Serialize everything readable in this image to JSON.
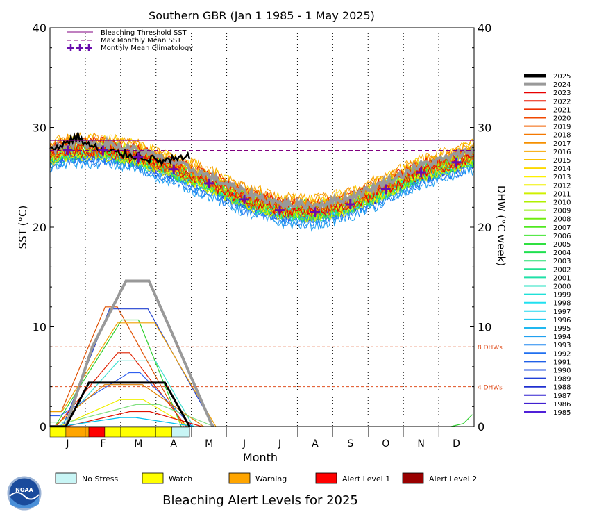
{
  "chart_data": {
    "type": "line",
    "title": "Southern GBR      (Jan 1 1985 - 1 May 2025)",
    "xlabel": "Month",
    "ylabel_left": "SST (°C)",
    "ylabel_right": "DHW (°C week)",
    "ylim": [
      0,
      40
    ],
    "yticks": [
      0,
      10,
      20,
      30,
      40
    ],
    "xticks": [
      "J",
      "F",
      "M",
      "A",
      "M",
      "J",
      "J",
      "A",
      "S",
      "O",
      "N",
      "D"
    ],
    "grid": "vertical dotted lines at month boundaries",
    "bleaching_threshold_sst": 28.7,
    "max_monthly_mean_sst": 27.7,
    "dhw_thresholds": [
      {
        "value": 4,
        "label": "4 DHWs"
      },
      {
        "value": 8,
        "label": "8 DHWs"
      }
    ],
    "legend_top": [
      {
        "label": "Bleaching Threshold SST",
        "style": "solid",
        "color": "#800080"
      },
      {
        "label": "Max Monthly Mean SST",
        "style": "dashed",
        "color": "#800080"
      },
      {
        "label": "Monthly Mean Climatology",
        "style": "plus",
        "color": "#6a0dad"
      }
    ],
    "climatology": [
      {
        "x": 0.5,
        "y": 27.7
      },
      {
        "x": 1.5,
        "y": 27.7
      },
      {
        "x": 2.5,
        "y": 27.0
      },
      {
        "x": 3.5,
        "y": 25.8
      },
      {
        "x": 4.5,
        "y": 24.4
      },
      {
        "x": 5.5,
        "y": 22.8
      },
      {
        "x": 6.5,
        "y": 21.7
      },
      {
        "x": 7.5,
        "y": 21.5
      },
      {
        "x": 8.5,
        "y": 22.3
      },
      {
        "x": 9.5,
        "y": 23.8
      },
      {
        "x": 10.5,
        "y": 25.5
      },
      {
        "x": 11.5,
        "y": 26.5
      }
    ],
    "sst_2025": [
      {
        "x": 0.0,
        "y": 27.7
      },
      {
        "x": 0.3,
        "y": 28.2
      },
      {
        "x": 0.5,
        "y": 28.6
      },
      {
        "x": 0.8,
        "y": 29.1
      },
      {
        "x": 1.0,
        "y": 28.4
      },
      {
        "x": 1.3,
        "y": 27.9
      },
      {
        "x": 1.6,
        "y": 27.6
      },
      {
        "x": 1.9,
        "y": 27.4
      },
      {
        "x": 2.2,
        "y": 27.3
      },
      {
        "x": 2.5,
        "y": 27.2
      },
      {
        "x": 2.8,
        "y": 26.9
      },
      {
        "x": 3.1,
        "y": 26.6
      },
      {
        "x": 3.4,
        "y": 26.7
      },
      {
        "x": 3.7,
        "y": 26.8
      },
      {
        "x": 3.95,
        "y": 27.0
      }
    ],
    "dhw_2025": [
      {
        "x": 0.0,
        "y": 0.0
      },
      {
        "x": 0.45,
        "y": 0.0
      },
      {
        "x": 1.1,
        "y": 4.4
      },
      {
        "x": 3.25,
        "y": 4.4
      },
      {
        "x": 3.95,
        "y": 0.0
      }
    ],
    "dhw_2024": [
      {
        "x": 0.0,
        "y": 0.0
      },
      {
        "x": 0.45,
        "y": 0.0
      },
      {
        "x": 1.2,
        "y": 8.0
      },
      {
        "x": 2.15,
        "y": 14.6
      },
      {
        "x": 2.8,
        "y": 14.6
      },
      {
        "x": 3.5,
        "y": 9.0
      },
      {
        "x": 4.6,
        "y": 0.0
      }
    ],
    "dhw_peaks_other_years": [
      {
        "peak": 12.0,
        "color": "#e05000"
      },
      {
        "peak": 11.8,
        "color": "#2040d0"
      },
      {
        "peak": 10.7,
        "color": "#30d030"
      },
      {
        "peak": 10.4,
        "color": "#f0a000"
      },
      {
        "peak": 7.4,
        "color": "#e02000"
      },
      {
        "peak": 6.6,
        "color": "#40e0d0"
      },
      {
        "peak": 5.4,
        "color": "#3060f0"
      },
      {
        "peak": 4.2,
        "color": "#e08000"
      },
      {
        "peak": 2.7,
        "color": "#f0f000"
      },
      {
        "peak": 2.2,
        "color": "#80e080"
      },
      {
        "peak": 1.5,
        "color": "#e01000"
      },
      {
        "peak": 0.9,
        "color": "#00c0f0"
      }
    ],
    "years_legend": [
      {
        "year": "2025",
        "color": "#000000",
        "width": 5
      },
      {
        "year": "2024",
        "color": "#999999",
        "width": 5
      },
      {
        "year": "2023",
        "color": "#e80000",
        "width": 2
      },
      {
        "year": "2022",
        "color": "#ec1800",
        "width": 2
      },
      {
        "year": "2021",
        "color": "#ee3000",
        "width": 2
      },
      {
        "year": "2020",
        "color": "#f04800",
        "width": 2
      },
      {
        "year": "2019",
        "color": "#f26000",
        "width": 2
      },
      {
        "year": "2018",
        "color": "#f47800",
        "width": 2
      },
      {
        "year": "2017",
        "color": "#f69000",
        "width": 2
      },
      {
        "year": "2016",
        "color": "#f8a800",
        "width": 2
      },
      {
        "year": "2015",
        "color": "#fac000",
        "width": 2
      },
      {
        "year": "2014",
        "color": "#fcd800",
        "width": 2
      },
      {
        "year": "2013",
        "color": "#fef000",
        "width": 2
      },
      {
        "year": "2012",
        "color": "#f0f000",
        "width": 2
      },
      {
        "year": "2011",
        "color": "#d0f000",
        "width": 2
      },
      {
        "year": "2010",
        "color": "#b0f000",
        "width": 2
      },
      {
        "year": "2009",
        "color": "#90f000",
        "width": 2
      },
      {
        "year": "2008",
        "color": "#70ec10",
        "width": 2
      },
      {
        "year": "2007",
        "color": "#50e820",
        "width": 2
      },
      {
        "year": "2006",
        "color": "#40e430",
        "width": 2
      },
      {
        "year": "2005",
        "color": "#30e040",
        "width": 2
      },
      {
        "year": "2004",
        "color": "#20e050",
        "width": 2
      },
      {
        "year": "2003",
        "color": "#20e070",
        "width": 2
      },
      {
        "year": "2002",
        "color": "#20e090",
        "width": 2
      },
      {
        "year": "2001",
        "color": "#20e0a8",
        "width": 2
      },
      {
        "year": "2000",
        "color": "#20e0c0",
        "width": 2
      },
      {
        "year": "1999",
        "color": "#20e0d8",
        "width": 2
      },
      {
        "year": "1998",
        "color": "#20e0f0",
        "width": 2
      },
      {
        "year": "1997",
        "color": "#20d8f0",
        "width": 2
      },
      {
        "year": "1996",
        "color": "#20c8f0",
        "width": 2
      },
      {
        "year": "1995",
        "color": "#20b8f0",
        "width": 2
      },
      {
        "year": "1994",
        "color": "#20a0f0",
        "width": 2
      },
      {
        "year": "1993",
        "color": "#2088f0",
        "width": 2
      },
      {
        "year": "1992",
        "color": "#2070f0",
        "width": 2
      },
      {
        "year": "1991",
        "color": "#2060e8",
        "width": 2
      },
      {
        "year": "1990",
        "color": "#2050e0",
        "width": 2
      },
      {
        "year": "1989",
        "color": "#2040d8",
        "width": 2
      },
      {
        "year": "1988",
        "color": "#2030d0",
        "width": 2
      },
      {
        "year": "1987",
        "color": "#3020d0",
        "width": 2
      },
      {
        "year": "1986",
        "color": "#4020d0",
        "width": 2
      },
      {
        "year": "1985",
        "color": "#5020d8",
        "width": 2
      }
    ],
    "alert_bar_2025": [
      {
        "from": 0.0,
        "to": 0.45,
        "level": "Watch"
      },
      {
        "from": 0.45,
        "to": 1.1,
        "level": "Warning"
      },
      {
        "from": 1.1,
        "to": 1.55,
        "level": "Alert Level 1"
      },
      {
        "from": 1.55,
        "to": 3.45,
        "level": "Watch"
      },
      {
        "from": 3.45,
        "to": 3.95,
        "level": "No Stress"
      }
    ],
    "alert_levels": [
      {
        "label": "No Stress",
        "color": "#c8f5f5"
      },
      {
        "label": "Watch",
        "color": "#ffff00"
      },
      {
        "label": "Warning",
        "color": "#ffa500"
      },
      {
        "label": "Alert Level 1",
        "color": "#ff0000"
      },
      {
        "label": "Alert Level 2",
        "color": "#990000"
      }
    ],
    "footer_title": "Bleaching Alert Levels for 2025"
  }
}
